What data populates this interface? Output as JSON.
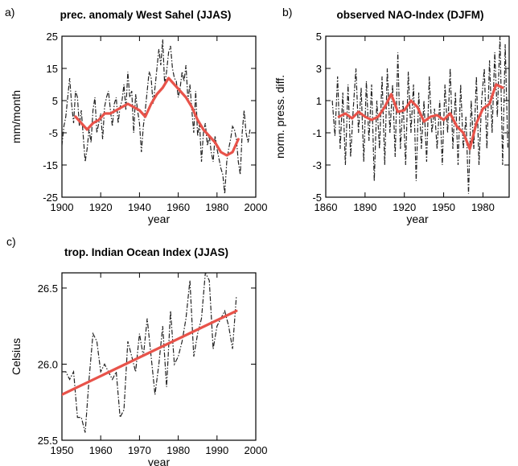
{
  "colors": {
    "smooth": "#e8534a",
    "raw": "#222222"
  },
  "chart_data": [
    {
      "type": "line",
      "panel": "a)",
      "title": "prec. anomaly West Sahel (JJAS)",
      "xlabel": "year",
      "ylabel": "mm/month",
      "xlim": [
        1900,
        2000
      ],
      "ylim": [
        -25,
        25
      ],
      "xticks": [
        1900,
        1920,
        1940,
        1960,
        1980,
        2000
      ],
      "yticks": [
        -25,
        -15,
        -5,
        5,
        15,
        25
      ],
      "series": [
        {
          "style": "dash-dot",
          "x": [
            1900,
            1901,
            1902,
            1903,
            1904,
            1905,
            1906,
            1907,
            1908,
            1909,
            1910,
            1911,
            1912,
            1913,
            1914,
            1915,
            1916,
            1917,
            1918,
            1919,
            1920,
            1921,
            1922,
            1923,
            1924,
            1925,
            1926,
            1927,
            1928,
            1929,
            1930,
            1931,
            1932,
            1933,
            1934,
            1935,
            1936,
            1937,
            1938,
            1939,
            1940,
            1941,
            1942,
            1943,
            1944,
            1945,
            1946,
            1947,
            1948,
            1949,
            1950,
            1951,
            1952,
            1953,
            1954,
            1955,
            1956,
            1957,
            1958,
            1959,
            1960,
            1961,
            1962,
            1963,
            1964,
            1965,
            1966,
            1967,
            1968,
            1969,
            1970,
            1971,
            1972,
            1973,
            1974,
            1975,
            1976,
            1977,
            1978,
            1979,
            1980,
            1981,
            1982,
            1983,
            1984,
            1985,
            1986,
            1987,
            1988,
            1989,
            1990,
            1991,
            1992,
            1993,
            1994,
            1995,
            1996,
            1997
          ],
          "y": [
            -9,
            -3,
            0,
            6,
            12,
            4,
            -2,
            8,
            6,
            -3,
            2,
            -6,
            -14,
            -10,
            -4,
            -8,
            2,
            6,
            -5,
            -2,
            1,
            -7,
            3,
            6,
            8,
            2,
            -3,
            4,
            6,
            -2,
            3,
            5,
            10,
            2,
            14,
            6,
            8,
            -5,
            7,
            2,
            -2,
            -11,
            -3,
            2,
            8,
            14,
            12,
            4,
            9,
            15,
            21,
            16,
            24,
            10,
            14,
            20,
            22,
            15,
            12,
            11,
            6,
            9,
            14,
            11,
            16,
            5,
            10,
            2,
            -5,
            8,
            -6,
            -2,
            -14,
            -5,
            -2,
            -9,
            -6,
            -11,
            -14,
            -6,
            -10,
            -13,
            -16,
            -18,
            -24,
            -14,
            -10,
            -7,
            -3,
            -4,
            -7,
            -14,
            -18,
            -5,
            2,
            -5,
            -8,
            -4
          ]
        },
        {
          "style": "smoothed",
          "x": [
            1907,
            1910,
            1913,
            1916,
            1919,
            1922,
            1925,
            1928,
            1931,
            1934,
            1937,
            1940,
            1943,
            1946,
            1949,
            1952,
            1955,
            1958,
            1961,
            1964,
            1967,
            1970,
            1973,
            1976,
            1979,
            1982,
            1985,
            1988,
            1991
          ],
          "y": [
            0,
            -2,
            -4,
            -2,
            -1,
            1,
            1,
            2,
            3,
            4,
            3,
            2,
            0,
            4,
            7,
            9,
            12,
            10,
            8,
            6,
            3,
            -1,
            -4,
            -6,
            -8,
            -11,
            -12,
            -11,
            -7
          ]
        }
      ]
    },
    {
      "type": "line",
      "panel": "b)",
      "title": "observed NAO-Index (DJFM)",
      "xlabel": "year",
      "ylabel": "norm. press. diff.",
      "xlim": [
        1860,
        2000
      ],
      "ylim": [
        -5,
        5
      ],
      "xticks": [
        1860,
        1890,
        1920,
        1950,
        1980
      ],
      "yticks": [
        -5,
        -3,
        -1,
        1,
        3,
        5
      ],
      "series": [
        {
          "style": "dash-dot",
          "x": [
            1865,
            1867,
            1869,
            1871,
            1873,
            1875,
            1877,
            1879,
            1881,
            1883,
            1885,
            1887,
            1889,
            1891,
            1893,
            1895,
            1897,
            1899,
            1901,
            1903,
            1905,
            1907,
            1909,
            1911,
            1913,
            1915,
            1917,
            1919,
            1921,
            1923,
            1925,
            1927,
            1929,
            1931,
            1933,
            1935,
            1937,
            1939,
            1941,
            1943,
            1945,
            1947,
            1949,
            1951,
            1953,
            1955,
            1957,
            1959,
            1961,
            1963,
            1965,
            1967,
            1969,
            1971,
            1973,
            1975,
            1977,
            1979,
            1981,
            1983,
            1985,
            1987,
            1989,
            1991,
            1993,
            1995,
            1997,
            1999
          ],
          "y": [
            1,
            -1.2,
            2.5,
            -2,
            1.5,
            -3,
            2,
            -2.5,
            0.5,
            3,
            -1,
            1.8,
            -2.8,
            2.2,
            -1.5,
            2,
            -4,
            1,
            -2,
            2.5,
            -3,
            3,
            -1,
            2,
            -2.5,
            4,
            -2,
            1,
            -3,
            2.8,
            -1,
            2,
            -4,
            1.5,
            -2,
            1,
            -2.8,
            2.5,
            -1,
            0.5,
            -2,
            1,
            -3,
            2,
            -1,
            3,
            -2,
            1.5,
            -3,
            2,
            -2,
            0,
            -4.8,
            1,
            -2,
            2.5,
            -3,
            1,
            3,
            -2,
            3.5,
            -1,
            4,
            0,
            5,
            -3,
            4.5,
            -2
          ]
        },
        {
          "style": "smoothed",
          "x": [
            1870,
            1875,
            1880,
            1885,
            1890,
            1895,
            1900,
            1905,
            1910,
            1915,
            1920,
            1925,
            1930,
            1935,
            1940,
            1945,
            1950,
            1955,
            1960,
            1965,
            1970,
            1975,
            1980,
            1985,
            1990,
            1995
          ],
          "y": [
            0,
            0.2,
            -0.1,
            0.3,
            0,
            -0.2,
            0,
            0.6,
            1.4,
            0.3,
            0.4,
            1.0,
            0.6,
            -0.3,
            0,
            0.1,
            -0.2,
            0.2,
            -0.6,
            -1.0,
            -2.0,
            -0.4,
            0.5,
            0.8,
            2.0,
            1.8
          ]
        }
      ]
    },
    {
      "type": "line",
      "panel": "c)",
      "title": "trop. Indian Ocean Index (JJAS)",
      "xlabel": "year",
      "ylabel": "Celsius",
      "xlim": [
        1950,
        2000
      ],
      "ylim": [
        25.5,
        26.6
      ],
      "xticks": [
        1950,
        1960,
        1970,
        1980,
        1990,
        2000
      ],
      "yticks": [
        25.5,
        26.0,
        26.5
      ],
      "series": [
        {
          "style": "dash-dot",
          "x": [
            1950,
            1951,
            1952,
            1953,
            1954,
            1955,
            1956,
            1957,
            1958,
            1959,
            1960,
            1961,
            1962,
            1963,
            1964,
            1965,
            1966,
            1967,
            1968,
            1969,
            1970,
            1971,
            1972,
            1973,
            1974,
            1975,
            1976,
            1977,
            1978,
            1979,
            1980,
            1981,
            1982,
            1983,
            1984,
            1985,
            1986,
            1987,
            1988,
            1989,
            1990,
            1991,
            1992,
            1993,
            1994,
            1995
          ],
          "y": [
            25.95,
            25.95,
            25.9,
            25.95,
            25.65,
            25.65,
            25.55,
            25.9,
            26.2,
            26.15,
            25.95,
            26.0,
            25.95,
            25.9,
            25.95,
            25.65,
            25.7,
            26.15,
            26.05,
            25.95,
            26.2,
            26.05,
            26.3,
            26.05,
            25.8,
            26.0,
            26.25,
            25.85,
            26.35,
            26.0,
            26.05,
            26.15,
            26.3,
            26.55,
            26.05,
            26.2,
            26.3,
            26.6,
            26.55,
            26.1,
            26.25,
            26.3,
            26.35,
            26.25,
            26.1,
            26.45
          ]
        },
        {
          "style": "smoothed",
          "x": [
            1950,
            1995
          ],
          "y": [
            25.8,
            26.35
          ]
        }
      ]
    }
  ]
}
